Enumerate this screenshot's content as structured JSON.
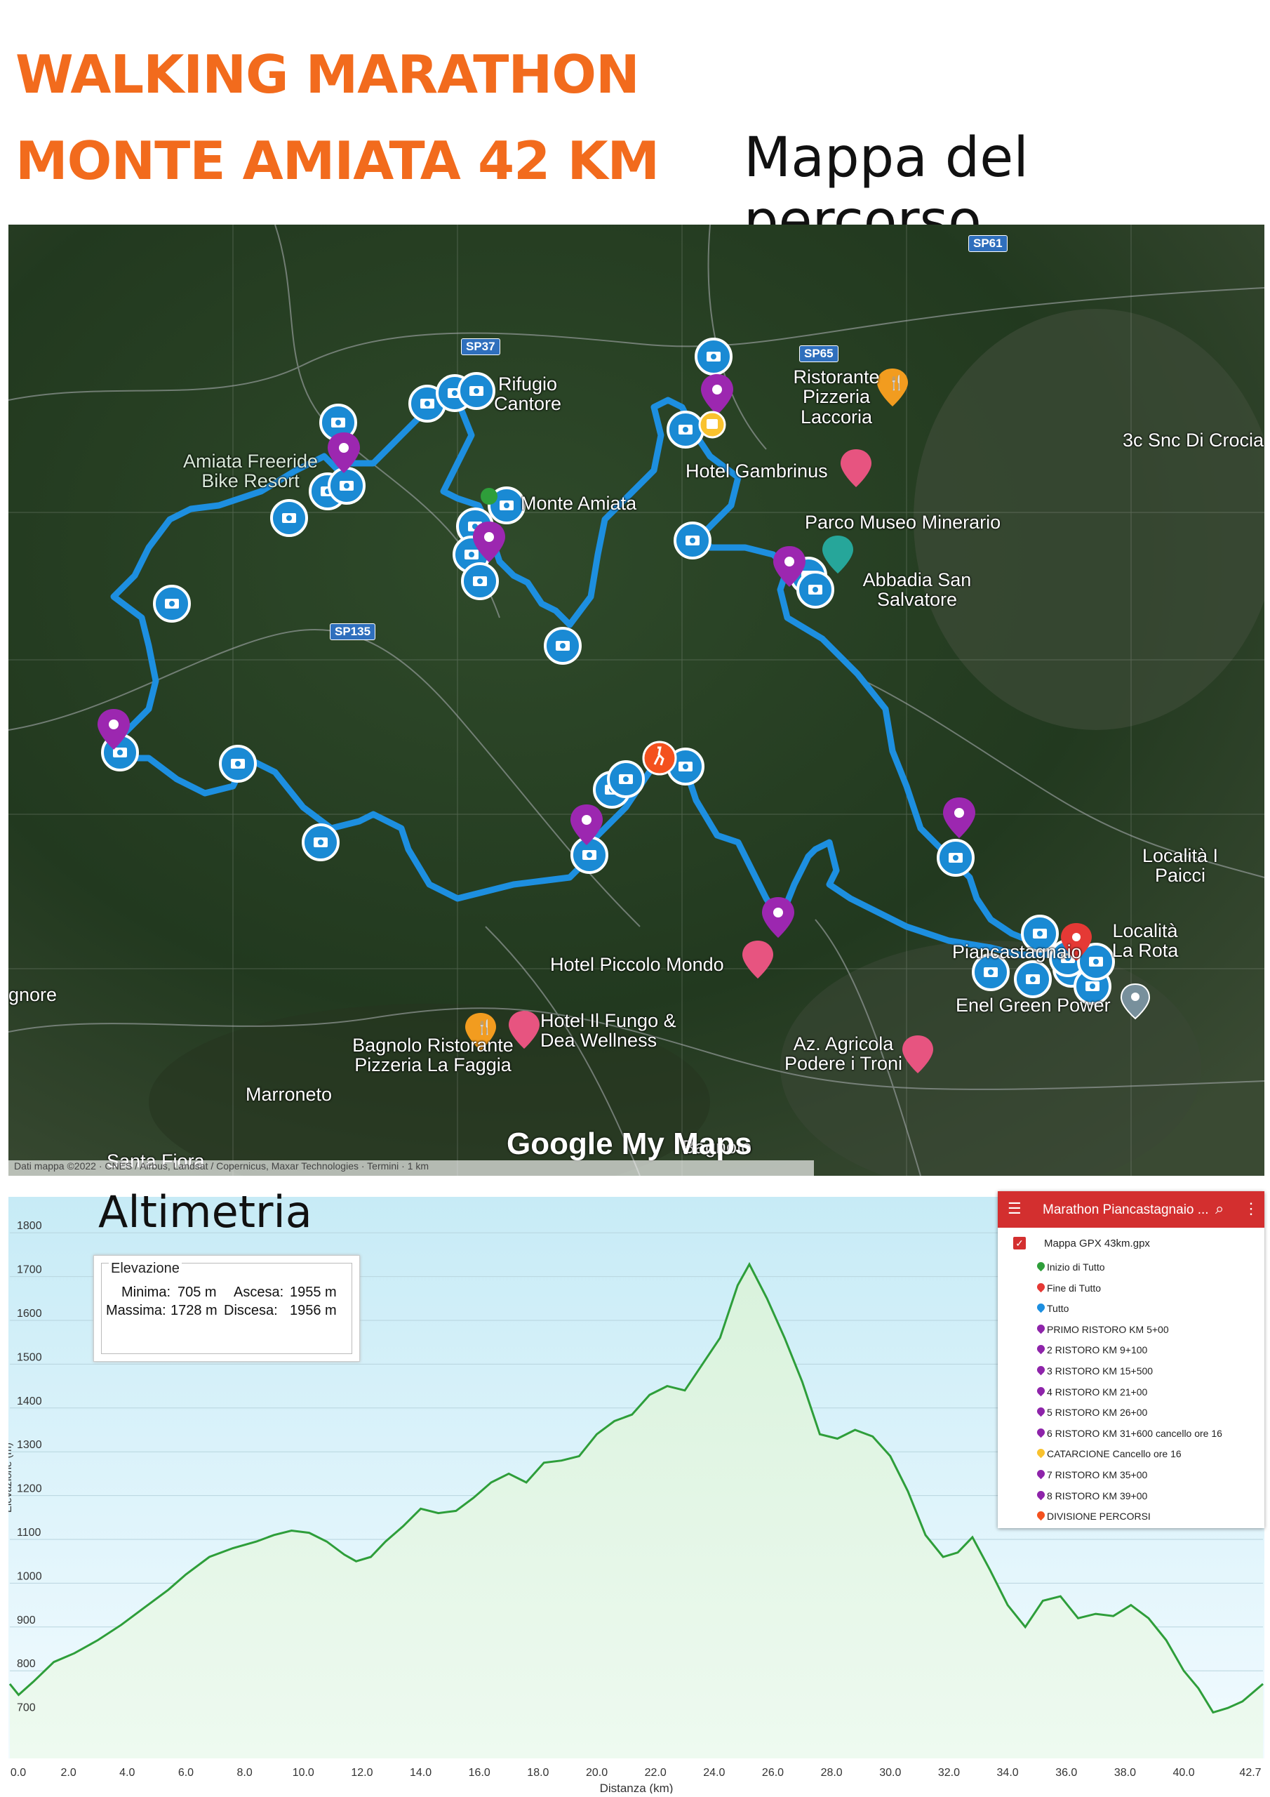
{
  "header": {
    "title_line1": "WALKING MARATHON",
    "title_line2": "MONTE AMIATA 42 KM",
    "map_heading": "Mappa del percorso"
  },
  "map": {
    "labels": {
      "sp61": "SP61",
      "sp37": "SP37",
      "sp65": "SP65",
      "sp135": "SP135",
      "rifugio": "Rifugio Cantore",
      "ristorante_laccoria": "Ristorante Pizzeria Laccoria",
      "amiata_freeride": "Amiata Freeride Bike Resort",
      "monte_amiata": "Monte Amiata",
      "hotel_gambrinus": "Hotel Gambrinus",
      "snc": "3c Snc Di Crocia",
      "parco_museo": "Parco Museo Minerario",
      "abbadia": "Abbadia San Salvatore",
      "localita_paicci": "Località I Paicci",
      "localita_rota": "Località La Rota",
      "piancastagnaio": "Piancastagnaio",
      "hotel_piccolo_mondo": "Hotel Piccolo Mondo",
      "enel": "Enel Green Power",
      "bagnolo_label": "gnore",
      "hotel_fungo": "Hotel Il Fungo & Dea Wellness",
      "bagnolo_rist": "Bagnolo Ristorante Pizzeria La Faggia",
      "az_agricola": "Az. Agricola Podere i Troni",
      "marroneto": "Marroneto",
      "santa_fiora": "Santa Fiora",
      "bagnolo": "Bagnolo",
      "google": "Google My Maps",
      "attribution": "Dati mappa ©2022 · CNES / Airbus, Landsat / Copernicus, Maxar Technologies · Termini · 1 km"
    },
    "colors": {
      "route": "#1d8fe0",
      "ristoro_pin": "#9c27b0",
      "photo_marker": "#1a8ad4"
    }
  },
  "altimetry": {
    "heading": "Altimetria",
    "elevation_box": {
      "legend": "Elevazione",
      "min_label": "Minima:",
      "min_value": "705 m",
      "ascent_label": "Ascesa:",
      "ascent_value": "1955 m",
      "max_label": "Massima:",
      "max_value": "1728 m",
      "descent_label": "Discesa:",
      "descent_value": "1956 m"
    }
  },
  "legend_panel": {
    "title": "Marathon Piancastagnaio ...",
    "menu_icon": "menu-icon",
    "search_icon": "search-icon",
    "more_icon": "more-vert-icon",
    "layer_name": "Mappa GPX 43km.gpx",
    "items": [
      {
        "label": "Inizio di Tutto",
        "color": "#2e9e3a"
      },
      {
        "label": "Fine di Tutto",
        "color": "#e53935"
      },
      {
        "label": "Tutto",
        "color": "#1d8fe0"
      },
      {
        "label": "PRIMO RISTORO KM 5+00",
        "color": "#8e24aa"
      },
      {
        "label": "2 RISTORO KM 9+100",
        "color": "#8e24aa"
      },
      {
        "label": "3 RISTORO KM 15+500",
        "color": "#8e24aa"
      },
      {
        "label": "4 RISTORO KM 21+00",
        "color": "#8e24aa"
      },
      {
        "label": "5 RISTORO KM 26+00",
        "color": "#8e24aa"
      },
      {
        "label": "6 RISTORO KM 31+600 cancello ore 16",
        "color": "#8e24aa"
      },
      {
        "label": "CATARCIONE Cancello ore 16",
        "color": "#f9c22e"
      },
      {
        "label": "7 RISTORO KM 35+00",
        "color": "#8e24aa"
      },
      {
        "label": "8 RISTORO KM 39+00",
        "color": "#8e24aa"
      },
      {
        "label": "DIVISIONE PERCORSI",
        "color": "#f4511e"
      }
    ]
  },
  "chart_data": {
    "type": "area",
    "title": "",
    "xlabel": "Distanza (km)",
    "ylabel": "Elevazione (m)",
    "xlim": [
      0,
      42.7
    ],
    "ylim": [
      600,
      1850
    ],
    "y_ticks": [
      700,
      800,
      900,
      1000,
      1100,
      1200,
      1300,
      1400,
      1500,
      1600,
      1700,
      1800
    ],
    "x_ticks": [
      "0.0",
      "2.0",
      "4.0",
      "6.0",
      "8.0",
      "10.0",
      "12.0",
      "14.0",
      "16.0",
      "18.0",
      "20.0",
      "22.0",
      "24.0",
      "26.0",
      "28.0",
      "30.0",
      "32.0",
      "34.0",
      "36.0",
      "38.0",
      "40.0",
      "42.7"
    ],
    "x_tick_values": [
      0,
      2,
      4,
      6,
      8,
      10,
      12,
      14,
      16,
      18,
      20,
      22,
      24,
      26,
      28,
      30,
      32,
      34,
      36,
      38,
      40,
      42.7
    ],
    "grid": true,
    "series": [
      {
        "x": [
          0,
          0.3,
          0.8,
          1.5,
          2.2,
          3.0,
          3.8,
          4.6,
          5.4,
          6.0,
          6.8,
          7.6,
          8.4,
          9.0,
          9.6,
          10.2,
          10.8,
          11.4,
          11.8,
          12.3,
          12.8,
          13.4,
          14.0,
          14.6,
          15.2,
          15.8,
          16.4,
          17.0,
          17.6,
          18.2,
          18.8,
          19.4,
          20.0,
          20.6,
          21.2,
          21.8,
          22.4,
          23.0,
          23.6,
          24.2,
          24.8,
          25.2,
          25.8,
          26.4,
          27.0,
          27.6,
          28.2,
          28.8,
          29.4,
          30.0,
          30.6,
          31.2,
          31.8,
          32.3,
          32.8,
          33.4,
          34.0,
          34.6,
          35.2,
          35.8,
          36.4,
          37.0,
          37.6,
          38.2,
          38.8,
          39.4,
          40.0,
          40.5,
          41.0,
          41.5,
          42.0,
          42.7
        ],
        "y": [
          770,
          745,
          775,
          820,
          840,
          870,
          905,
          945,
          985,
          1020,
          1060,
          1080,
          1095,
          1110,
          1120,
          1115,
          1095,
          1065,
          1050,
          1060,
          1095,
          1130,
          1170,
          1160,
          1165,
          1195,
          1230,
          1250,
          1230,
          1275,
          1280,
          1290,
          1340,
          1370,
          1385,
          1430,
          1450,
          1440,
          1500,
          1560,
          1680,
          1728,
          1650,
          1560,
          1460,
          1340,
          1330,
          1350,
          1335,
          1290,
          1210,
          1110,
          1060,
          1070,
          1105,
          1030,
          950,
          900,
          960,
          970,
          920,
          930,
          925,
          950,
          920,
          870,
          800,
          760,
          705,
          715,
          730,
          770
        ]
      }
    ]
  }
}
